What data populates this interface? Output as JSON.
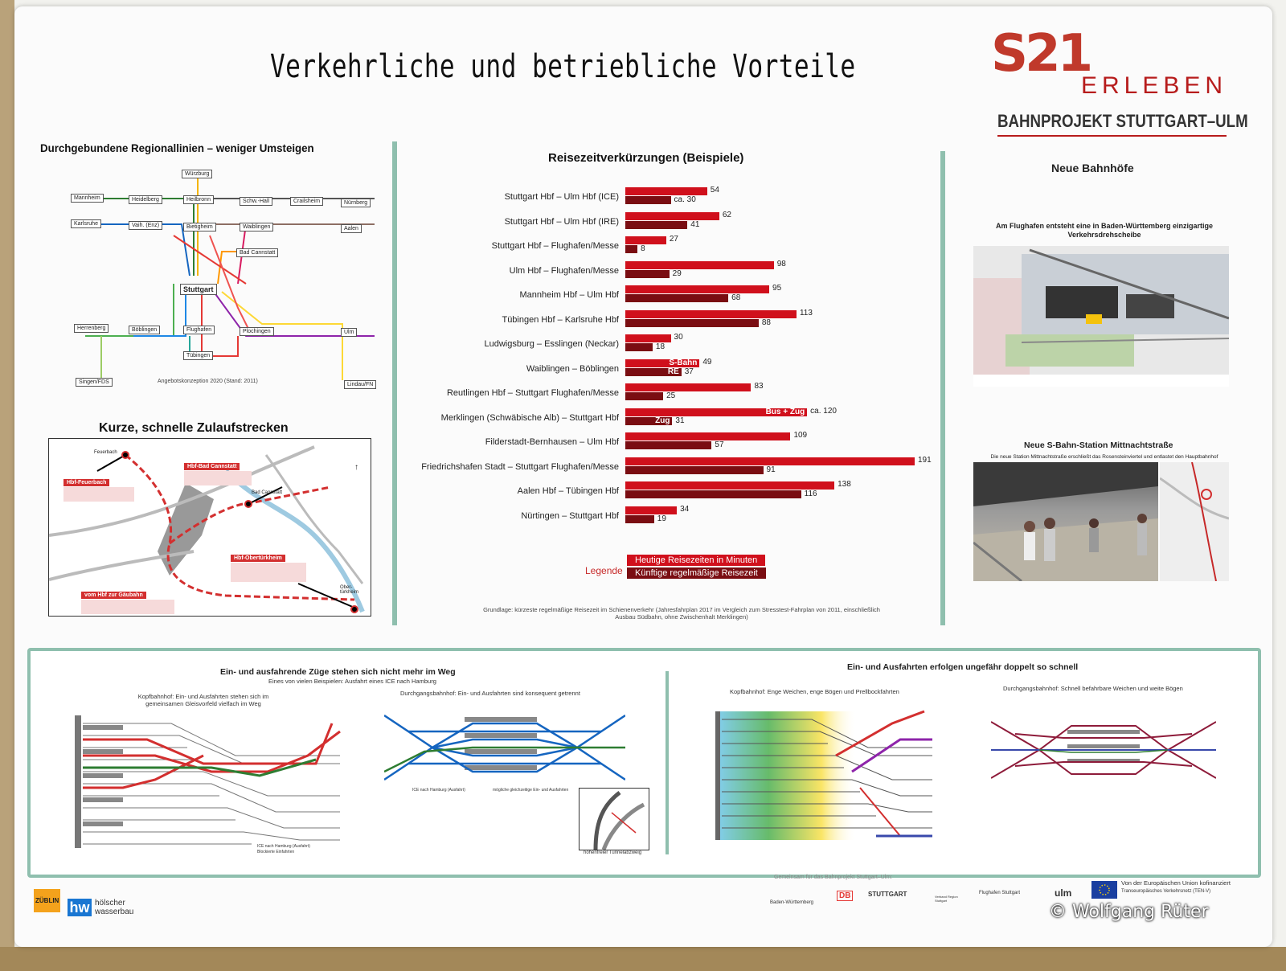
{
  "title": "Verkehrliche und betriebliche Vorteile",
  "logo": {
    "mark": "S21",
    "erleben": "ERLEBEN",
    "project": "BAHNPROJEKT STUTTGART–ULM"
  },
  "colors": {
    "current": "#d0101c",
    "future": "#7a0d12",
    "accent": "#8fbfae",
    "brand": "#b71c1c"
  },
  "left": {
    "network_title": "Durchgebundene Regionallinien – weniger Umsteigen",
    "stations": [
      "Würzburg",
      "Mannheim",
      "Heidelberg",
      "Heilbronn",
      "Schw.-Hall",
      "Crailsheim",
      "Nürnberg",
      "Karlsruhe",
      "Vaih. (Enz)",
      "Bietigheim",
      "Waiblingen",
      "Aalen",
      "Bad Cannstatt",
      "Stuttgart",
      "Herrenberg",
      "Böblingen",
      "Flughafen",
      "Plochingen",
      "Ulm",
      "Tübingen",
      "Singen/FDS",
      "Lindau/FN"
    ],
    "network_caption": "Angebotskonzeption 2020 (Stand: 2011)",
    "map_title": "Kurze, schnelle Zulaufstrecken",
    "map_tags": [
      "Hbf-Feuerbach",
      "Hbf-Bad Cannstatt",
      "Hbf-Obertürkheim",
      "vom Hbf zur Gäubahn"
    ],
    "map_places": [
      "Feuerbach",
      "Bad Cannstatt",
      "Ober-türkheim"
    ]
  },
  "chart_data": {
    "type": "bar",
    "title": "Reisezeitverkürzungen (Beispiele)",
    "unit": "Minuten",
    "categories": [
      "Stuttgart Hbf – Ulm Hbf (ICE)",
      "Stuttgart Hbf – Ulm Hbf (IRE)",
      "Stuttgart Hbf – Flughafen/Messe",
      "Ulm Hbf – Flughafen/Messe",
      "Mannheim Hbf – Ulm Hbf",
      "Tübingen Hbf – Karlsruhe Hbf",
      "Ludwigsburg – Esslingen (Neckar)",
      "Waiblingen – Böblingen",
      "Reutlingen Hbf – Stuttgart Flughafen/Messe",
      "Merklingen (Schwäbische Alb) – Stuttgart Hbf",
      "Filderstadt-Bernhausen – Ulm Hbf",
      "Friedrichshafen Stadt – Stuttgart Flughafen/Messe",
      "Aalen Hbf – Tübingen Hbf",
      "Nürtingen – Stuttgart Hbf"
    ],
    "series": [
      {
        "name": "Heutige Reisezeiten in Minuten",
        "values": [
          54,
          62,
          27,
          98,
          95,
          113,
          30,
          49,
          83,
          120,
          109,
          191,
          138,
          34
        ]
      },
      {
        "name": "Künftige regelmäßige Reisezeit",
        "values": [
          30,
          41,
          8,
          29,
          68,
          88,
          18,
          37,
          25,
          31,
          57,
          91,
          116,
          19
        ]
      }
    ],
    "value_labels_current": [
      "54",
      "62",
      "27",
      "98",
      "95",
      "113",
      "30",
      "49",
      "83",
      "ca. 120",
      "109",
      "191",
      "138",
      "34"
    ],
    "value_labels_future": [
      "ca. 30",
      "41",
      "8",
      "29",
      "68",
      "88",
      "18",
      "37",
      "25",
      "31",
      "57",
      "91",
      "116",
      "19"
    ],
    "inbar_current": {
      "7": "S-Bahn",
      "9": "Bus + Zug"
    },
    "inbar_future": {
      "7": "RE",
      "9": "Zug"
    },
    "legend_label": "Legende",
    "legend_placement": "bottom-left",
    "basis": "Grundlage: kürzeste regelmäßige Reisezeit im Schienenverkehr (Jahresfahrplan 2017 im Vergleich zum Stresstest-Fahrplan von 2011, einschließlich Ausbau Südbahn, ohne Zwischenhalt Merklingen)",
    "xlim": [
      0,
      191
    ]
  },
  "right": {
    "title": "Neue Bahnhöfe",
    "airport_caption": "Am Flughafen entsteht eine in Baden-Württemberg einzigartige Verkehrsdrehscheibe",
    "station_title": "Neue S-Bahn-Station Mittnachtstraße",
    "station_caption": "Die neue Station Mittnachtstraße erschließt das Rosensteinviertel und entlastet den Hauptbahnhof"
  },
  "bottom": {
    "left_title": "Ein- und ausfahrende Züge stehen sich nicht mehr im Weg",
    "left_sub": "Eines von vielen Beispielen: Ausfahrt eines ICE nach Hamburg",
    "kopf_label": "Kopfbahnhof: Ein- und Ausfahrten stehen sich im gemeinsamen Gleisvorfeld vielfach im Weg",
    "durch_label": "Durchgangsbahnhof: Ein- und Ausfahrten sind konsequent getrennt",
    "kopf_legend": [
      "ICE nach Hamburg (Ausfahrt)",
      "Blockierte Einfahrten"
    ],
    "durch_legend": [
      "ICE nach Hamburg (Ausfahrt)",
      "mögliche gleichzeitige Ein- und Ausfahrten"
    ],
    "tunnel_caption": "höhenfreier Tunnelabzweig",
    "right_title": "Ein- und Ausfahrten erfolgen ungefähr doppelt so schnell",
    "kopf2_label": "Kopfbahnhof: Enge Weichen, enge Bögen und Prellbockfahrten",
    "durch2_label": "Durchgangsbahnhof: Schnell befahrbare Weichen und weite Bögen"
  },
  "footer": {
    "joint": "Gemeinsam für das Bahnprojekt Stuttgart–Ulm:",
    "partners": [
      "Baden-Württemberg",
      "DB",
      "STUTTGART",
      "Verband Region Stuttgart",
      "Flughafen Stuttgart",
      "ulm"
    ],
    "eu": "Von der Europäischen Union kofinanziert",
    "eu_sub": "Transeuropäisches Verkehrsnetz (TEN-V)",
    "sponsor1": "ZÜBLIN",
    "sponsor2": "hölscher wasserbau",
    "copyright": "© Wolfgang Rüter"
  }
}
